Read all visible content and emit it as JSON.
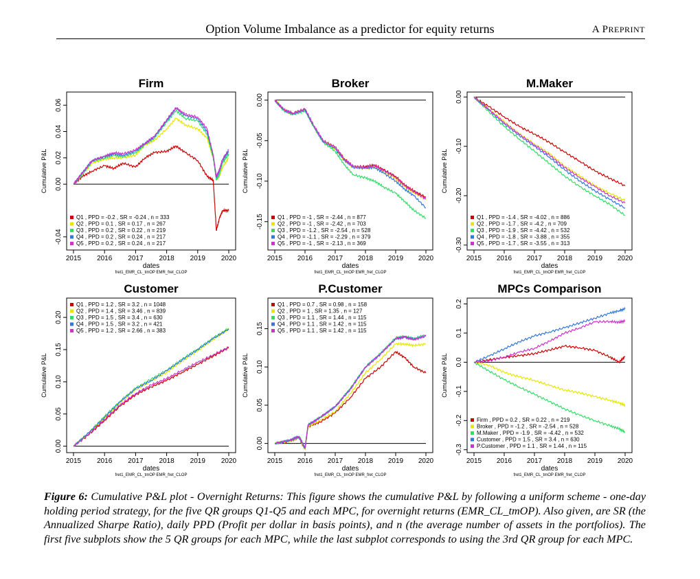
{
  "header": {
    "title": "Option Volume Imbalance as a predictor for equity returns",
    "right_label": "A Preprint"
  },
  "caption": {
    "label": "Figure 6:",
    "text": "Cumulative P&L plot - Overnight Returns: This figure shows the cumulative P&L by following a uniform scheme - one-day holding period strategy, for the five QR groups Q1-Q5 and each MPC, for overnight returns (EMR_CL_tmOP). Also given, are SR (the Annualized Sharpe Ratio), daily PPD (Profit per dollar in basis points), and n (the average number of assets in the portfolios). The first five subplots show the 5 QR groups for each MPC, while the last subplot corresponds to using the 3rd QR group for each MPC."
  },
  "colors": {
    "s1": "#cc0000",
    "s2": "#e6e600",
    "s3": "#33dd66",
    "s4": "#3377dd",
    "s5": "#cc33cc",
    "zero": "#000000"
  },
  "chart_data": [
    {
      "type": "line",
      "title": "Firm",
      "xlabel": "dates",
      "ylabel": "Cumulative P&L",
      "sublabel": "fret1_EMR_CL_tmOP EMR_fret_CLOP",
      "x_ticks": [
        "2015",
        "2016",
        "2017",
        "2018",
        "2019",
        "2020"
      ],
      "y_ticks": [
        "-0.04",
        "0.00",
        "0.02",
        "0.04",
        "0.06"
      ],
      "y_tick_values": [
        -0.04,
        0,
        0.02,
        0.04,
        0.06
      ],
      "ylim": [
        -0.05,
        0.07
      ],
      "legend_position": "bottom-left",
      "x": [
        2015.0,
        2015.3,
        2015.6,
        2016.0,
        2016.3,
        2016.6,
        2017.0,
        2017.3,
        2017.6,
        2018.0,
        2018.3,
        2018.6,
        2019.0,
        2019.3,
        2019.5,
        2019.6,
        2019.7,
        2019.8,
        2020.0
      ],
      "series": [
        {
          "label": "Q1 , PPD = -0.2 , SR = -0.24 , n = 333",
          "values": [
            0,
            0.006,
            0.01,
            0.014,
            0.012,
            0.016,
            0.013,
            0.02,
            0.024,
            0.025,
            0.029,
            0.024,
            0.018,
            0.006,
            0.003,
            -0.035,
            -0.026,
            -0.02,
            -0.02
          ]
        },
        {
          "label": "Q2 , PPD = 0.1 , SR = 0.17 , n = 267",
          "values": [
            0,
            0.008,
            0.016,
            0.019,
            0.02,
            0.02,
            0.022,
            0.03,
            0.033,
            0.042,
            0.05,
            0.045,
            0.042,
            0.035,
            0.02,
            0.004,
            0.006,
            0.013,
            0.02
          ]
        },
        {
          "label": "Q3 , PPD = 0.2 , SR = 0.22 , n = 219",
          "values": [
            0,
            0.008,
            0.017,
            0.02,
            0.022,
            0.021,
            0.024,
            0.03,
            0.035,
            0.047,
            0.056,
            0.05,
            0.048,
            0.038,
            0.02,
            0.003,
            0.008,
            0.016,
            0.023
          ]
        },
        {
          "label": "Q4 , PPD = 0.2 , SR = 0.24 , n = 217",
          "values": [
            0,
            0.009,
            0.018,
            0.021,
            0.023,
            0.022,
            0.025,
            0.031,
            0.036,
            0.048,
            0.058,
            0.052,
            0.05,
            0.04,
            0.022,
            0.005,
            0.01,
            0.018,
            0.025
          ]
        },
        {
          "label": "Q5 , PPD = 0.2 , SR = 0.24 , n = 217",
          "values": [
            0,
            0.009,
            0.018,
            0.021,
            0.024,
            0.023,
            0.026,
            0.031,
            0.036,
            0.049,
            0.058,
            0.053,
            0.051,
            0.042,
            0.022,
            0.006,
            0.011,
            0.019,
            0.026
          ]
        }
      ]
    },
    {
      "type": "line",
      "title": "Broker",
      "xlabel": "dates",
      "ylabel": "Cumulative P&L",
      "sublabel": "fret1_EMR_CL_tmOP EMR_fret_CLOP",
      "x_ticks": [
        "2015",
        "2016",
        "2017",
        "2018",
        "2019",
        "2020"
      ],
      "y_ticks": [
        "-0.15",
        "-0.10",
        "-0.05",
        "0.00"
      ],
      "y_tick_values": [
        -0.15,
        -0.1,
        -0.05,
        0
      ],
      "ylim": [
        -0.185,
        0.01
      ],
      "legend_position": "bottom-left",
      "x": [
        2015.0,
        2015.3,
        2015.6,
        2016.0,
        2016.3,
        2016.6,
        2017.0,
        2017.3,
        2017.6,
        2018.0,
        2018.3,
        2018.6,
        2019.0,
        2019.3,
        2019.6,
        2020.0
      ],
      "series": [
        {
          "label": "Q1 , PPD = -1 , SR = -2.44 , n = 877",
          "values": [
            0,
            -0.012,
            -0.016,
            -0.011,
            -0.032,
            -0.05,
            -0.058,
            -0.072,
            -0.082,
            -0.082,
            -0.08,
            -0.086,
            -0.094,
            -0.105,
            -0.112,
            -0.12
          ]
        },
        {
          "label": "Q2 , PPD = -1 , SR = -2.42 , n = 703",
          "values": [
            0,
            -0.012,
            -0.017,
            -0.012,
            -0.033,
            -0.051,
            -0.06,
            -0.074,
            -0.083,
            -0.084,
            -0.082,
            -0.088,
            -0.097,
            -0.107,
            -0.114,
            -0.123
          ]
        },
        {
          "label": "Q3 , PPD = -1.2 , SR = -2.54 , n = 528",
          "values": [
            0,
            -0.013,
            -0.018,
            -0.013,
            -0.034,
            -0.052,
            -0.063,
            -0.08,
            -0.092,
            -0.096,
            -0.1,
            -0.107,
            -0.115,
            -0.125,
            -0.136,
            -0.146
          ]
        },
        {
          "label": "Q4 , PPD = -1.1 , SR = -2.29 , n = 379",
          "values": [
            0,
            -0.012,
            -0.017,
            -0.012,
            -0.033,
            -0.051,
            -0.06,
            -0.074,
            -0.083,
            -0.084,
            -0.083,
            -0.09,
            -0.1,
            -0.11,
            -0.118,
            -0.133
          ]
        },
        {
          "label": "Q5 , PPD = -1 , SR = -2.13 , n = 369",
          "values": [
            0,
            -0.012,
            -0.016,
            -0.011,
            -0.032,
            -0.05,
            -0.058,
            -0.073,
            -0.082,
            -0.083,
            -0.081,
            -0.087,
            -0.095,
            -0.106,
            -0.113,
            -0.122
          ]
        }
      ]
    },
    {
      "type": "line",
      "title": "M.Maker",
      "xlabel": "dates",
      "ylabel": "Cumulative P&L",
      "sublabel": "fret1_EMR_CL_tmOP EMR_fret_CLOP",
      "x_ticks": [
        "2015",
        "2016",
        "2017",
        "2018",
        "2019",
        "2020"
      ],
      "y_ticks": [
        "-0.30",
        "-0.20",
        "-0.10",
        "0.00"
      ],
      "y_tick_values": [
        -0.3,
        -0.2,
        -0.1,
        0
      ],
      "ylim": [
        -0.31,
        0.01
      ],
      "legend_position": "bottom-left",
      "x": [
        2015.0,
        2015.5,
        2016.0,
        2016.5,
        2017.0,
        2017.5,
        2018.0,
        2018.5,
        2019.0,
        2019.5,
        2020.0
      ],
      "series": [
        {
          "label": "Q1 , PPD = -1.4 , SR = -4.02 , n = 886",
          "values": [
            0,
            -0.02,
            -0.04,
            -0.06,
            -0.075,
            -0.092,
            -0.112,
            -0.13,
            -0.15,
            -0.165,
            -0.18
          ]
        },
        {
          "label": "Q2 , PPD = -1.7 , SR = -4.2 , n = 709",
          "values": [
            0,
            -0.025,
            -0.05,
            -0.075,
            -0.095,
            -0.115,
            -0.14,
            -0.16,
            -0.18,
            -0.195,
            -0.21
          ]
        },
        {
          "label": "Q3 , PPD = -1.9 , SR = -4.42 , n = 532",
          "values": [
            0,
            -0.03,
            -0.06,
            -0.085,
            -0.11,
            -0.135,
            -0.16,
            -0.182,
            -0.2,
            -0.218,
            -0.24
          ]
        },
        {
          "label": "Q4 , PPD = -1.8 , SR = -3.88 , n = 355",
          "values": [
            0,
            -0.027,
            -0.054,
            -0.078,
            -0.1,
            -0.122,
            -0.148,
            -0.17,
            -0.19,
            -0.208,
            -0.225
          ]
        },
        {
          "label": "Q5 , PPD = -1.7 , SR = -3.55 , n = 313",
          "values": [
            0,
            -0.026,
            -0.052,
            -0.076,
            -0.097,
            -0.118,
            -0.143,
            -0.163,
            -0.182,
            -0.2,
            -0.215
          ]
        }
      ]
    },
    {
      "type": "line",
      "title": "Customer",
      "xlabel": "dates",
      "ylabel": "Cumulative P&L",
      "sublabel": "fret1_EMR_CL_tmOP EMR_fret_CLOP",
      "x_ticks": [
        "2015",
        "2016",
        "2017",
        "2018",
        "2019",
        "2020"
      ],
      "y_ticks": [
        "0.00",
        "0.05",
        "0.10",
        "0.15",
        "0.20"
      ],
      "y_tick_values": [
        0,
        0.05,
        0.1,
        0.15,
        0.2
      ],
      "ylim": [
        -0.01,
        0.23
      ],
      "legend_position": "top-left",
      "x": [
        2015.0,
        2015.5,
        2016.0,
        2016.5,
        2017.0,
        2017.5,
        2018.0,
        2018.5,
        2019.0,
        2019.5,
        2020.0
      ],
      "series": [
        {
          "label": "Q1 , PPD = 1.2 , SR = 3.2 , n = 1048",
          "values": [
            0,
            0.018,
            0.04,
            0.062,
            0.08,
            0.092,
            0.102,
            0.115,
            0.127,
            0.14,
            0.153
          ]
        },
        {
          "label": "Q2 , PPD = 1.4 , SR = 3.46 , n = 839",
          "values": [
            0,
            0.02,
            0.044,
            0.068,
            0.088,
            0.101,
            0.115,
            0.132,
            0.148,
            0.166,
            0.182
          ]
        },
        {
          "label": "Q3 , PPD = 1.5 , SR = 3.4 , n = 630",
          "values": [
            0,
            0.021,
            0.046,
            0.07,
            0.09,
            0.104,
            0.118,
            0.135,
            0.151,
            0.168,
            0.183
          ]
        },
        {
          "label": "Q4 , PPD = 1.5 , SR = 3.2 , n = 421",
          "values": [
            0,
            0.021,
            0.045,
            0.069,
            0.089,
            0.102,
            0.117,
            0.134,
            0.15,
            0.167,
            0.182
          ]
        },
        {
          "label": "Q5 , PPD = 1.2 , SR = 2.66 , n = 383",
          "values": [
            0,
            0.019,
            0.042,
            0.064,
            0.082,
            0.095,
            0.105,
            0.118,
            0.13,
            0.142,
            0.154
          ]
        }
      ]
    },
    {
      "type": "line",
      "title": "P.Customer",
      "xlabel": "dates",
      "ylabel": "Cumulative P&L",
      "sublabel": "fret1_EMR_CL_tmOP EMR_fret_CLOP",
      "x_ticks": [
        "2015",
        "2016",
        "2017",
        "2018",
        "2019",
        "2020"
      ],
      "y_ticks": [
        "0.00",
        "0.05",
        "0.10",
        "0.15"
      ],
      "y_tick_values": [
        0,
        0.05,
        0.1,
        0.15
      ],
      "ylim": [
        -0.012,
        0.19
      ],
      "legend_position": "top-left",
      "x": [
        2015.0,
        2015.5,
        2015.8,
        2016.0,
        2016.1,
        2016.5,
        2017.0,
        2017.5,
        2018.0,
        2018.5,
        2019.0,
        2019.3,
        2019.6,
        2020.0
      ],
      "series": [
        {
          "label": "Q1 , PPD = 0.7 , SR = 0.98 , n = 158",
          "values": [
            0,
            0.003,
            0.008,
            -0.008,
            0.022,
            0.028,
            0.04,
            0.06,
            0.085,
            0.1,
            0.12,
            0.112,
            0.1,
            0.092
          ]
        },
        {
          "label": "Q2 , PPD = 1 , SR = 1.35 , n = 127",
          "values": [
            0,
            0.003,
            0.008,
            -0.008,
            0.022,
            0.03,
            0.042,
            0.065,
            0.092,
            0.11,
            0.13,
            0.13,
            0.128,
            0.13
          ]
        },
        {
          "label": "Q3 , PPD = 1.1 , SR = 1.44 , n = 115",
          "values": [
            0,
            0.004,
            0.009,
            -0.006,
            0.024,
            0.034,
            0.048,
            0.072,
            0.1,
            0.118,
            0.138,
            0.14,
            0.137,
            0.142
          ]
        },
        {
          "label": "Q4 , PPD = 1.1 , SR = 1.42 , n = 115",
          "values": [
            0,
            0.004,
            0.009,
            -0.006,
            0.024,
            0.034,
            0.048,
            0.071,
            0.1,
            0.117,
            0.137,
            0.139,
            0.136,
            0.141
          ]
        },
        {
          "label": "Q5 , PPD = 1.1 , SR = 1.42 , n = 115",
          "values": [
            0,
            0.004,
            0.009,
            -0.006,
            0.024,
            0.034,
            0.048,
            0.071,
            0.099,
            0.117,
            0.137,
            0.139,
            0.136,
            0.14
          ]
        }
      ]
    },
    {
      "type": "line",
      "title": "MPCs Comparison",
      "xlabel": "dates",
      "ylabel": "Cumulative P&L",
      "sublabel": "fret1_EMR_CL_tmOP EMR_fret_CLOP",
      "x_ticks": [
        "2015",
        "2016",
        "2017",
        "2018",
        "2019",
        "2020"
      ],
      "y_ticks": [
        "-0.3",
        "-0.2",
        "-0.1",
        "0.0",
        "0.1",
        "0.2"
      ],
      "y_tick_values": [
        -0.3,
        -0.2,
        -0.1,
        0,
        0.1,
        0.2
      ],
      "ylim": [
        -0.31,
        0.22
      ],
      "legend_position": "bottom-left",
      "x": [
        2015.0,
        2015.5,
        2016.0,
        2016.5,
        2017.0,
        2017.5,
        2018.0,
        2018.5,
        2019.0,
        2019.5,
        2019.8,
        2020.0
      ],
      "series": [
        {
          "label": "Firm , PPD = 0.2 , SR = 0.22 , n = 219",
          "values": [
            0,
            0.008,
            0.017,
            0.022,
            0.03,
            0.042,
            0.055,
            0.05,
            0.04,
            0.018,
            0,
            0.02
          ]
        },
        {
          "label": "Broker , PPD = -1.2 , SR = -2.54 , n = 528",
          "values": [
            0,
            -0.01,
            -0.035,
            -0.05,
            -0.062,
            -0.08,
            -0.095,
            -0.105,
            -0.118,
            -0.13,
            -0.14,
            -0.148
          ]
        },
        {
          "label": "M.Maker , PPD = -1.9 , SR = -4.42 , n = 532",
          "values": [
            0,
            -0.03,
            -0.06,
            -0.085,
            -0.11,
            -0.135,
            -0.16,
            -0.182,
            -0.2,
            -0.218,
            -0.228,
            -0.24
          ]
        },
        {
          "label": "Customer , PPD = 1.5 , SR = 3.4 , n = 630",
          "values": [
            0,
            0.021,
            0.046,
            0.07,
            0.09,
            0.104,
            0.118,
            0.135,
            0.151,
            0.168,
            0.177,
            0.183
          ]
        },
        {
          "label": "P.Customer , PPD = 1.1 , SR = 1.44 , n = 115",
          "values": [
            0,
            0.005,
            0.018,
            0.034,
            0.048,
            0.072,
            0.1,
            0.118,
            0.138,
            0.14,
            0.137,
            0.142
          ]
        }
      ]
    }
  ]
}
